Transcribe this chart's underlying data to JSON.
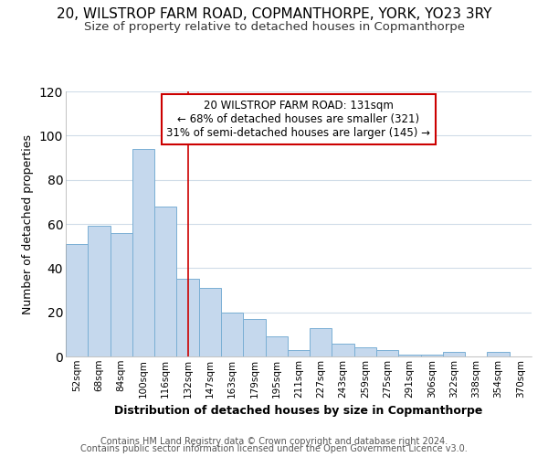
{
  "title1": "20, WILSTROP FARM ROAD, COPMANTHORPE, YORK, YO23 3RY",
  "title2": "Size of property relative to detached houses in Copmanthorpe",
  "xlabel": "Distribution of detached houses by size in Copmanthorpe",
  "ylabel": "Number of detached properties",
  "categories": [
    "52sqm",
    "68sqm",
    "84sqm",
    "100sqm",
    "116sqm",
    "132sqm",
    "147sqm",
    "163sqm",
    "179sqm",
    "195sqm",
    "211sqm",
    "227sqm",
    "243sqm",
    "259sqm",
    "275sqm",
    "291sqm",
    "306sqm",
    "322sqm",
    "338sqm",
    "354sqm",
    "370sqm"
  ],
  "values": [
    51,
    59,
    56,
    94,
    68,
    35,
    31,
    20,
    17,
    9,
    3,
    13,
    6,
    4,
    3,
    1,
    1,
    2,
    0,
    2,
    0
  ],
  "bar_color": "#c5d8ed",
  "bar_edge_color": "#7aafd4",
  "vline_x_index": 5,
  "vline_color": "#cc0000",
  "annotation_line1": "20 WILSTROP FARM ROAD: 131sqm",
  "annotation_line2": "← 68% of detached houses are smaller (321)",
  "annotation_line3": "31% of semi-detached houses are larger (145) →",
  "annotation_box_edgecolor": "#cc0000",
  "footer1": "Contains HM Land Registry data © Crown copyright and database right 2024.",
  "footer2": "Contains public sector information licensed under the Open Government Licence v3.0.",
  "ylim": [
    0,
    120
  ],
  "bg_color": "#ffffff",
  "plot_bg_color": "#ffffff",
  "grid_color": "#d0dce8",
  "title1_fontsize": 11,
  "title2_fontsize": 9.5,
  "axis_label_fontsize": 9,
  "tick_fontsize": 7.5,
  "footer_fontsize": 7,
  "ann_fontsize": 8.5
}
